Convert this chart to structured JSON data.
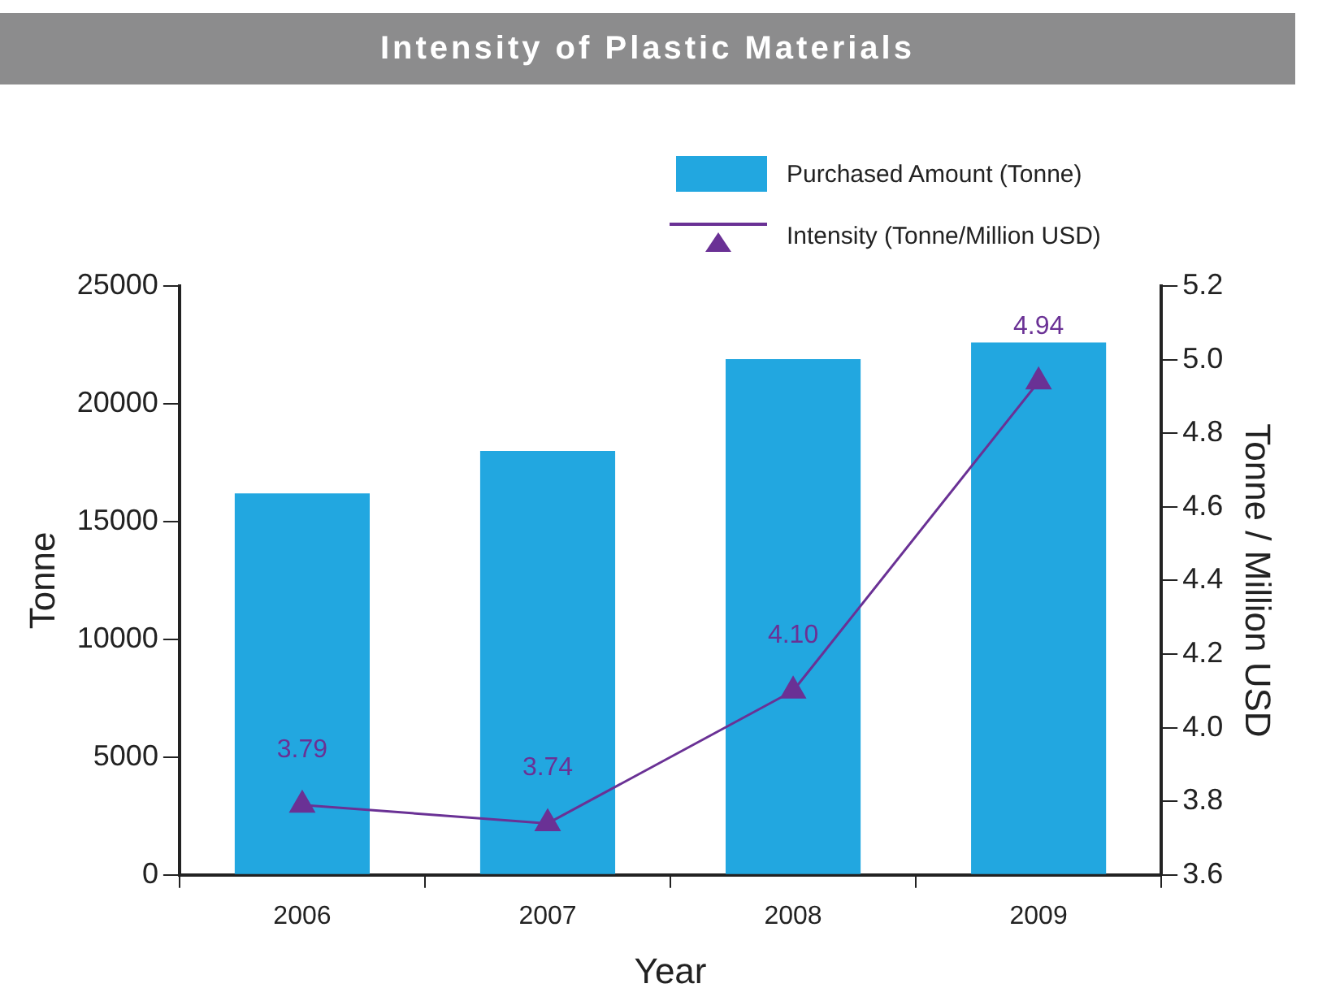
{
  "chart_data": {
    "type": "bar",
    "title": "Intensity of Plastic Materials",
    "xlabel": "Year",
    "ylabel": "Tonne",
    "y2label": "Tonne / Million USD",
    "categories": [
      "2006",
      "2007",
      "2008",
      "2009"
    ],
    "series": [
      {
        "name": "Purchased Amount (Tonne)",
        "color": "#22a7e0",
        "values": [
          16200,
          18000,
          21900,
          22600
        ]
      },
      {
        "name": "Intensity (Tonne/Million USD)",
        "type": "line",
        "axis": "y2",
        "color": "#6a3195",
        "values": [
          3.79,
          3.74,
          4.1,
          4.94
        ],
        "value_labels": [
          "3.79",
          "3.74",
          "4.10",
          "4.94"
        ]
      }
    ],
    "ylim": [
      0,
      25000
    ],
    "yticks": [
      0,
      5000,
      10000,
      15000,
      20000,
      25000
    ],
    "y2lim": [
      3.6,
      5.2
    ],
    "y2ticks": [
      {
        "value": 3.6,
        "label": "3.6"
      },
      {
        "value": 3.8,
        "label": "3.8"
      },
      {
        "value": 4,
        "label": "4.0"
      },
      {
        "value": 4.2,
        "label": "4.2"
      },
      {
        "value": 4.4,
        "label": "4.4"
      },
      {
        "value": 4.6,
        "label": "4.6"
      },
      {
        "value": 4.8,
        "label": "4.8"
      },
      {
        "value": 5,
        "label": "5.0"
      },
      {
        "value": 5.2,
        "label": "5.2"
      }
    ],
    "grid": false,
    "legend": "top right",
    "marker": "triangle",
    "line_style": "solid"
  }
}
